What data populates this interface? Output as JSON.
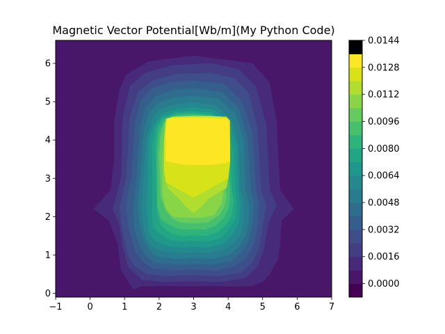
{
  "chart_data": {
    "type": "heatmap",
    "subtype": "filled-contour",
    "title": "Magnetic Vector Potential[Wb/m](My Python Code)",
    "xlabel": "",
    "ylabel": "",
    "xlim": [
      -1,
      7
    ],
    "ylim": [
      -0.1,
      6.6
    ],
    "x_ticks": [
      "−1",
      "0",
      "1",
      "2",
      "3",
      "4",
      "5",
      "6",
      "7"
    ],
    "y_ticks": [
      "0",
      "1",
      "2",
      "3",
      "4",
      "5",
      "6"
    ],
    "colorbar": {
      "levels": [
        -0.0008,
        0.0,
        0.0008,
        0.0016,
        0.0024,
        0.0032,
        0.004,
        0.0048,
        0.0056,
        0.0064,
        0.0072,
        0.008,
        0.0088,
        0.0096,
        0.0104,
        0.0112,
        0.012,
        0.0128,
        0.0136,
        0.0144
      ],
      "tick_labels": [
        "0.0000",
        "0.0016",
        "0.0032",
        "0.0048",
        "0.0064",
        "0.0080",
        "0.0096",
        "0.0112",
        "0.0128",
        "0.0144"
      ],
      "colors": [
        "#440154",
        "#481769",
        "#472a7a",
        "#433d84",
        "#3d4e8a",
        "#355e8d",
        "#2e6d8e",
        "#297b8e",
        "#23898e",
        "#1f978b",
        "#21a585",
        "#2eb37c",
        "#46c06f",
        "#65cb5e",
        "#89d548",
        "#b0dd2f",
        "#d8e219",
        "#fde725"
      ]
    },
    "contours": [
      {
        "x": [
          -1,
          7,
          7,
          -1
        ],
        "y": [
          -0.1,
          -0.1,
          6.6,
          6.6
        ],
        "value": 0.0004
      },
      {
        "x": [
          1.25,
          1.45,
          2.1,
          2.8,
          3.4,
          4.1,
          4.7,
          5.0,
          5.2,
          5.45,
          5.5,
          5.55,
          5.9,
          5.5,
          5.4,
          5.2,
          4.7,
          3.0,
          1.7,
          1.05,
          0.85,
          0.7,
          0.7,
          0.6,
          0.1,
          0.55,
          0.8,
          0.9
        ],
        "y": [
          0.1,
          0.18,
          0.2,
          0.18,
          0.2,
          0.18,
          0.2,
          0.3,
          0.5,
          0.9,
          1.3,
          1.9,
          2.2,
          2.7,
          4.5,
          5.5,
          6.0,
          6.2,
          6.05,
          5.7,
          5.3,
          4.5,
          3.5,
          2.7,
          2.2,
          1.9,
          1.3,
          0.6
        ],
        "value": 0.0012
      },
      {
        "x": [
          1.5,
          2.2,
          3.0,
          3.8,
          4.5,
          4.85,
          5.05,
          5.15,
          5.3,
          5.4,
          5.2,
          5.1,
          4.8,
          4.3,
          3.5,
          2.4,
          1.6,
          1.15,
          0.95,
          0.9,
          0.75,
          0.65,
          0.85,
          0.95,
          1.1
        ],
        "y": [
          0.35,
          0.3,
          0.32,
          0.3,
          0.4,
          0.7,
          1.2,
          1.8,
          2.1,
          2.3,
          2.7,
          4.4,
          5.4,
          5.85,
          6.0,
          5.95,
          5.75,
          5.4,
          4.6,
          3.0,
          2.5,
          2.2,
          1.8,
          1.2,
          0.7
        ],
        "value": 0.002
      },
      {
        "x": [
          1.65,
          2.3,
          3.0,
          3.7,
          4.4,
          4.7,
          4.9,
          5.0,
          5.1,
          4.95,
          4.85,
          4.6,
          4.2,
          3.5,
          2.5,
          1.8,
          1.4,
          1.15,
          1.05,
          0.95,
          0.85,
          0.95,
          1.1,
          1.3
        ],
        "y": [
          0.5,
          0.45,
          0.48,
          0.45,
          0.55,
          0.8,
          1.2,
          1.8,
          2.3,
          2.7,
          4.3,
          5.2,
          5.6,
          5.75,
          5.72,
          5.55,
          5.25,
          4.6,
          3.0,
          2.6,
          2.25,
          1.6,
          1.0,
          0.7
        ],
        "value": 0.0028
      },
      {
        "x": [
          1.8,
          2.4,
          3.0,
          3.6,
          4.2,
          4.55,
          4.75,
          4.85,
          4.9,
          4.8,
          4.7,
          4.4,
          3.9,
          3.0,
          2.3,
          1.8,
          1.45,
          1.3,
          1.2,
          1.1,
          1.05,
          1.15,
          1.3,
          1.5
        ],
        "y": [
          0.65,
          0.6,
          0.63,
          0.6,
          0.7,
          0.95,
          1.3,
          1.8,
          2.3,
          2.7,
          4.2,
          5.0,
          5.45,
          5.55,
          5.5,
          5.35,
          5.0,
          4.4,
          3.0,
          2.6,
          2.2,
          1.6,
          1.1,
          0.85
        ],
        "value": 0.0036
      },
      {
        "x": [
          1.9,
          2.5,
          3.0,
          3.5,
          4.1,
          4.4,
          4.6,
          4.7,
          4.75,
          4.65,
          4.55,
          4.3,
          3.8,
          3.0,
          2.4,
          1.9,
          1.6,
          1.45,
          1.35,
          1.3,
          1.25,
          1.3,
          1.45,
          1.65
        ],
        "y": [
          0.8,
          0.75,
          0.77,
          0.75,
          0.85,
          1.1,
          1.4,
          1.85,
          2.3,
          2.7,
          4.1,
          4.85,
          5.25,
          5.35,
          5.3,
          5.15,
          4.85,
          4.3,
          3.0,
          2.6,
          2.2,
          1.65,
          1.2,
          0.95
        ],
        "value": 0.0044
      },
      {
        "x": [
          2.0,
          2.5,
          3.0,
          3.5,
          4.0,
          4.3,
          4.5,
          4.6,
          4.6,
          4.5,
          4.45,
          4.2,
          3.7,
          3.0,
          2.4,
          1.95,
          1.7,
          1.55,
          1.45,
          1.4,
          1.4,
          1.45,
          1.6,
          1.8
        ],
        "y": [
          0.95,
          0.9,
          0.92,
          0.9,
          1.0,
          1.2,
          1.5,
          1.9,
          2.3,
          2.7,
          4.0,
          4.7,
          5.08,
          5.15,
          5.1,
          4.95,
          4.7,
          4.2,
          3.0,
          2.6,
          2.2,
          1.7,
          1.3,
          1.05
        ],
        "value": 0.0052
      },
      {
        "x": [
          2.1,
          2.55,
          3.0,
          3.45,
          3.9,
          4.2,
          4.4,
          4.45,
          4.45,
          4.35,
          4.3,
          4.1,
          3.6,
          3.0,
          2.45,
          2.0,
          1.8,
          1.65,
          1.55,
          1.5,
          1.55,
          1.65,
          1.8
        ],
        "y": [
          1.1,
          1.05,
          1.07,
          1.05,
          1.15,
          1.35,
          1.6,
          2.0,
          2.35,
          2.7,
          3.9,
          4.55,
          4.9,
          4.98,
          4.92,
          4.8,
          4.55,
          4.1,
          3.0,
          2.2,
          1.75,
          1.4,
          1.2
        ],
        "value": 0.006
      },
      {
        "x": [
          2.2,
          2.6,
          3.0,
          3.4,
          3.85,
          4.1,
          4.3,
          4.35,
          4.3,
          4.25,
          4.05,
          3.6,
          3.0,
          2.45,
          2.05,
          1.85,
          1.7,
          1.65,
          1.7,
          1.75,
          1.9
        ],
        "y": [
          1.25,
          1.2,
          1.22,
          1.2,
          1.3,
          1.5,
          1.8,
          2.3,
          2.7,
          3.8,
          4.45,
          4.78,
          4.85,
          4.8,
          4.65,
          4.4,
          4.0,
          2.2,
          1.7,
          1.5,
          1.35
        ],
        "value": 0.0068
      },
      {
        "x": [
          2.3,
          2.65,
          3.0,
          3.4,
          3.8,
          4.0,
          4.2,
          4.25,
          4.2,
          4.15,
          4.0,
          3.55,
          3.0,
          2.5,
          2.1,
          1.9,
          1.8,
          1.8,
          1.85,
          2.0
        ],
        "y": [
          1.4,
          1.35,
          1.37,
          1.35,
          1.45,
          1.65,
          1.95,
          2.35,
          2.7,
          3.7,
          4.38,
          4.7,
          4.75,
          4.72,
          4.6,
          4.35,
          3.9,
          2.0,
          1.7,
          1.55
        ],
        "value": 0.0076
      },
      {
        "x": [
          2.4,
          2.7,
          3.0,
          3.35,
          3.7,
          3.95,
          4.1,
          4.15,
          4.1,
          4.05,
          3.95,
          3.5,
          3.0,
          2.5,
          2.1,
          1.95,
          1.9,
          1.95,
          2.05,
          2.2
        ],
        "y": [
          1.55,
          1.5,
          1.52,
          1.5,
          1.6,
          1.8,
          2.05,
          2.4,
          2.7,
          3.6,
          4.3,
          4.65,
          4.7,
          4.68,
          4.55,
          4.3,
          3.8,
          2.1,
          1.8,
          1.65
        ],
        "value": 0.0084
      },
      {
        "x": [
          2.5,
          2.75,
          3.0,
          3.3,
          3.6,
          3.85,
          4.0,
          4.05,
          4.05,
          3.95,
          3.9,
          3.5,
          3.0,
          2.5,
          2.15,
          2.0,
          1.95,
          1.95,
          2.05,
          2.3
        ],
        "y": [
          1.7,
          1.66,
          1.68,
          1.66,
          1.75,
          1.95,
          2.2,
          2.45,
          2.7,
          3.5,
          4.25,
          4.62,
          4.66,
          4.64,
          4.5,
          4.2,
          3.7,
          2.3,
          1.95,
          1.8
        ],
        "value": 0.0092
      },
      {
        "x": [
          2.6,
          3.0,
          3.4,
          3.75,
          3.9,
          3.95,
          3.9,
          3.85,
          3.5,
          3.0,
          2.5,
          2.15,
          2.05,
          2.0,
          2.05,
          2.2,
          2.4
        ],
        "y": [
          1.85,
          1.83,
          1.85,
          2.05,
          2.3,
          2.55,
          2.9,
          4.2,
          4.6,
          4.63,
          4.61,
          4.45,
          4.1,
          3.6,
          2.5,
          2.15,
          1.95
        ],
        "value": 0.01
      },
      {
        "x": [
          2.4,
          2.7,
          3.0,
          3.3,
          3.6,
          3.8,
          3.85,
          3.85,
          3.8,
          3.5,
          3.0,
          2.5,
          2.25,
          2.15,
          2.1,
          2.1,
          2.2
        ],
        "y": [
          2.0,
          1.98,
          1.97,
          1.98,
          2.05,
          2.35,
          2.6,
          3.0,
          4.2,
          4.58,
          4.6,
          4.58,
          4.45,
          4.1,
          3.5,
          2.6,
          2.2
        ],
        "value": 0.0108
      },
      {
        "x": [
          2.25,
          2.6,
          2.85,
          3.0,
          3.15,
          3.4,
          3.75,
          3.95,
          4.0,
          4.05,
          4.05,
          3.9,
          3.5,
          3.0,
          2.4,
          2.25,
          2.2,
          2.2
        ],
        "y": [
          2.75,
          2.45,
          2.2,
          2.1,
          2.2,
          2.45,
          2.65,
          2.75,
          3.0,
          3.8,
          4.5,
          4.6,
          4.62,
          4.62,
          4.6,
          4.55,
          4.0,
          3.0
        ],
        "value": 0.0116
      },
      {
        "x": [
          2.2,
          2.8,
          3.0,
          3.2,
          3.8,
          4.0,
          4.05,
          4.05,
          3.95,
          3.5,
          3.0,
          2.4,
          2.2,
          2.15,
          2.15
        ],
        "y": [
          2.9,
          2.6,
          2.5,
          2.6,
          2.9,
          3.0,
          3.4,
          4.5,
          4.6,
          4.62,
          4.62,
          4.6,
          4.55,
          4.0,
          3.2
        ],
        "value": 0.0124
      },
      {
        "x": [
          2.2,
          2.6,
          2.8,
          3.2,
          3.5,
          3.9,
          4.05,
          4.05,
          4.0,
          3.5,
          3.0,
          2.4,
          2.25,
          2.2,
          2.2
        ],
        "y": [
          3.45,
          3.38,
          3.36,
          3.35,
          3.36,
          3.4,
          3.45,
          3.8,
          4.55,
          4.57,
          4.58,
          4.57,
          4.55,
          4.3,
          3.8
        ],
        "value": 0.0134
      }
    ]
  }
}
